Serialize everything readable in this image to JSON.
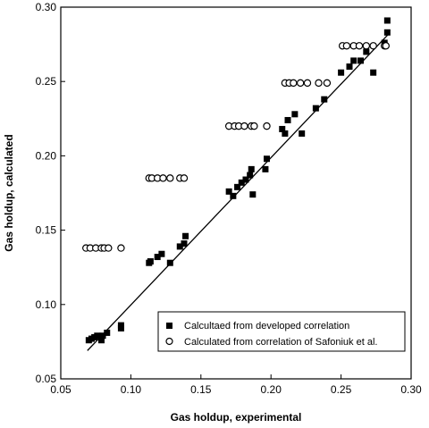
{
  "chart_data": {
    "type": "scatter",
    "xlabel": "Gas holdup, experimental",
    "ylabel": "Gas holdup, calculated",
    "xlim": [
      0.05,
      0.3
    ],
    "ylim": [
      0.05,
      0.3
    ],
    "x_ticks": [
      "0.05",
      "0.10",
      "0.15",
      "0.20",
      "0.25",
      "0.30"
    ],
    "y_ticks": [
      "0.05",
      "0.10",
      "0.15",
      "0.20",
      "0.25",
      "0.30"
    ],
    "grid": false,
    "legend_position": "bottom-right",
    "series": [
      {
        "name": "Calcultaed from developed correlation",
        "marker": "filled-square",
        "color": "#000000",
        "points": [
          [
            0.07,
            0.076
          ],
          [
            0.072,
            0.077
          ],
          [
            0.074,
            0.078
          ],
          [
            0.076,
            0.079
          ],
          [
            0.079,
            0.076
          ],
          [
            0.08,
            0.079
          ],
          [
            0.083,
            0.081
          ],
          [
            0.093,
            0.084
          ],
          [
            0.093,
            0.086
          ],
          [
            0.113,
            0.128
          ],
          [
            0.114,
            0.129
          ],
          [
            0.119,
            0.132
          ],
          [
            0.122,
            0.134
          ],
          [
            0.128,
            0.128
          ],
          [
            0.135,
            0.139
          ],
          [
            0.138,
            0.141
          ],
          [
            0.139,
            0.146
          ],
          [
            0.17,
            0.176
          ],
          [
            0.173,
            0.173
          ],
          [
            0.176,
            0.179
          ],
          [
            0.179,
            0.182
          ],
          [
            0.182,
            0.184
          ],
          [
            0.185,
            0.187
          ],
          [
            0.186,
            0.191
          ],
          [
            0.187,
            0.174
          ],
          [
            0.196,
            0.191
          ],
          [
            0.197,
            0.198
          ],
          [
            0.208,
            0.218
          ],
          [
            0.21,
            0.215
          ],
          [
            0.212,
            0.224
          ],
          [
            0.217,
            0.228
          ],
          [
            0.222,
            0.215
          ],
          [
            0.232,
            0.232
          ],
          [
            0.238,
            0.238
          ],
          [
            0.25,
            0.256
          ],
          [
            0.256,
            0.26
          ],
          [
            0.259,
            0.264
          ],
          [
            0.264,
            0.264
          ],
          [
            0.268,
            0.27
          ],
          [
            0.273,
            0.256
          ],
          [
            0.281,
            0.276
          ],
          [
            0.283,
            0.283
          ],
          [
            0.283,
            0.291
          ]
        ]
      },
      {
        "name": "Calculated from correlation of Safoniuk et al.",
        "marker": "open-circle",
        "color": "#000000",
        "points": [
          [
            0.068,
            0.138
          ],
          [
            0.071,
            0.138
          ],
          [
            0.075,
            0.138
          ],
          [
            0.079,
            0.138
          ],
          [
            0.081,
            0.138
          ],
          [
            0.084,
            0.138
          ],
          [
            0.093,
            0.138
          ],
          [
            0.113,
            0.185
          ],
          [
            0.115,
            0.185
          ],
          [
            0.119,
            0.185
          ],
          [
            0.123,
            0.185
          ],
          [
            0.128,
            0.185
          ],
          [
            0.135,
            0.185
          ],
          [
            0.138,
            0.185
          ],
          [
            0.17,
            0.22
          ],
          [
            0.174,
            0.22
          ],
          [
            0.177,
            0.22
          ],
          [
            0.181,
            0.22
          ],
          [
            0.186,
            0.22
          ],
          [
            0.188,
            0.22
          ],
          [
            0.197,
            0.22
          ],
          [
            0.21,
            0.249
          ],
          [
            0.213,
            0.249
          ],
          [
            0.216,
            0.249
          ],
          [
            0.221,
            0.249
          ],
          [
            0.226,
            0.249
          ],
          [
            0.234,
            0.249
          ],
          [
            0.24,
            0.249
          ],
          [
            0.251,
            0.274
          ],
          [
            0.254,
            0.274
          ],
          [
            0.259,
            0.274
          ],
          [
            0.263,
            0.274
          ],
          [
            0.268,
            0.274
          ],
          [
            0.273,
            0.274
          ],
          [
            0.281,
            0.274
          ],
          [
            0.282,
            0.274
          ]
        ]
      }
    ],
    "fit_line": {
      "from": [
        0.069,
        0.069
      ],
      "to": [
        0.284,
        0.282
      ]
    }
  }
}
